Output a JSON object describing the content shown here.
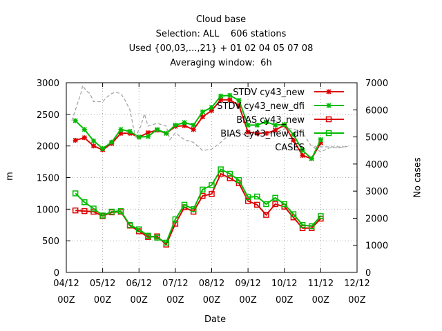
{
  "chart_data": {
    "type": "line",
    "title": "Cloud base",
    "subtitle_lines": [
      "Selection: ALL    606 stations",
      "Used {00,03,...,21} + 01 02 04 05 07 08",
      "Averaging window:  6h"
    ],
    "xlabel": "Date",
    "ylabel": "m",
    "y2label": "No cases",
    "x_ticks": [
      {
        "x": 0,
        "label": [
          "04/12",
          "00Z"
        ]
      },
      {
        "x": 1,
        "label": [
          "05/12",
          "00Z"
        ]
      },
      {
        "x": 2,
        "label": [
          "06/12",
          "00Z"
        ]
      },
      {
        "x": 3,
        "label": [
          "07/12",
          "00Z"
        ]
      },
      {
        "x": 4,
        "label": [
          "08/12",
          "00Z"
        ]
      },
      {
        "x": 5,
        "label": [
          "09/12",
          "00Z"
        ]
      },
      {
        "x": 6,
        "label": [
          "10/12",
          "00Z"
        ]
      },
      {
        "x": 7,
        "label": [
          "11/12",
          "00Z"
        ]
      },
      {
        "x": 8,
        "label": [
          "12/12",
          "00Z"
        ]
      }
    ],
    "xlim": [
      0,
      8
    ],
    "ylim": [
      0,
      3000
    ],
    "y_ticks": [
      0,
      500,
      1000,
      1500,
      2000,
      2500,
      3000
    ],
    "y2lim": [
      0,
      7000
    ],
    "y2_ticks": [
      0,
      1000,
      2000,
      3000,
      4000,
      5000,
      6000,
      7000
    ],
    "grid": true,
    "legend_position": "top-right",
    "x": [
      0.25,
      0.5,
      0.75,
      1.0,
      1.25,
      1.5,
      1.75,
      2.0,
      2.25,
      2.5,
      2.75,
      3.0,
      3.25,
      3.5,
      3.75,
      4.0,
      4.25,
      4.5,
      4.75,
      5.0,
      5.25,
      5.5,
      5.75,
      6.0,
      6.25,
      6.5,
      6.75,
      7.0,
      7.25
    ],
    "series": [
      {
        "name": "STDV cy43_new",
        "color": "#dd0000",
        "marker": "x",
        "axis": "y1",
        "values": [
          2090,
          2130,
          2000,
          1940,
          2040,
          2200,
          2200,
          2140,
          2210,
          2250,
          2200,
          2310,
          2320,
          2260,
          2460,
          2560,
          2730,
          2730,
          2640,
          2220,
          2200,
          2200,
          2250,
          2330,
          2090,
          1850,
          1800,
          2050,
          null
        ]
      },
      {
        "name": "STDV cy43_new_dfi",
        "color": "#00bb00",
        "marker": "x",
        "axis": "y1",
        "values": [
          2400,
          2260,
          2080,
          1960,
          2060,
          2260,
          2230,
          2140,
          2150,
          2260,
          2200,
          2330,
          2370,
          2330,
          2540,
          2610,
          2790,
          2800,
          2720,
          2330,
          2330,
          2380,
          2330,
          2340,
          2180,
          1930,
          1800,
          2100,
          null
        ]
      },
      {
        "name": "BIAS cy43_new",
        "color": "#dd0000",
        "marker": "square",
        "axis": "y1",
        "values": [
          980,
          970,
          960,
          890,
          950,
          960,
          740,
          650,
          560,
          570,
          440,
          770,
          1030,
          960,
          1210,
          1240,
          1560,
          1490,
          1410,
          1130,
          1070,
          910,
          1080,
          1040,
          870,
          700,
          700,
          850,
          null
        ]
      },
      {
        "name": "BIAS cy43_new_dfi",
        "color": "#00bb00",
        "marker": "square",
        "axis": "y1",
        "values": [
          1250,
          1110,
          1010,
          900,
          960,
          970,
          750,
          680,
          580,
          550,
          470,
          840,
          1070,
          1000,
          1310,
          1380,
          1630,
          1560,
          1460,
          1190,
          1200,
          1080,
          1180,
          1080,
          920,
          750,
          730,
          890,
          null
        ]
      },
      {
        "name": "CASES",
        "color": "#a0a0a0",
        "marker": "none",
        "axis": "y2",
        "dash": true,
        "points": [
          [
            0.15,
            5600
          ],
          [
            0.25,
            6000
          ],
          [
            0.4,
            6600
          ],
          [
            0.45,
            6900
          ],
          [
            0.55,
            6700
          ],
          [
            0.65,
            6600
          ],
          [
            0.75,
            6300
          ],
          [
            1.0,
            6300
          ],
          [
            1.1,
            6450
          ],
          [
            1.25,
            6600
          ],
          [
            1.35,
            6650
          ],
          [
            1.5,
            6600
          ],
          [
            1.6,
            6400
          ],
          [
            1.75,
            6000
          ],
          [
            1.9,
            5000
          ],
          [
            2.05,
            5400
          ],
          [
            2.15,
            5850
          ],
          [
            2.25,
            5400
          ],
          [
            2.5,
            5500
          ],
          [
            2.75,
            5400
          ],
          [
            2.85,
            4900
          ],
          [
            3.0,
            5150
          ],
          [
            3.25,
            4900
          ],
          [
            3.5,
            4800
          ],
          [
            3.75,
            4500
          ],
          [
            4.0,
            4550
          ],
          [
            4.25,
            4800
          ],
          [
            4.5,
            5100
          ],
          [
            4.75,
            5200
          ],
          [
            5.0,
            5000
          ],
          [
            5.25,
            5200
          ],
          [
            5.5,
            5100
          ],
          [
            5.75,
            5150
          ],
          [
            6.0,
            5300
          ],
          [
            6.25,
            5300
          ],
          [
            6.5,
            5150
          ],
          [
            6.75,
            4650
          ],
          [
            7.0,
            4450
          ],
          [
            7.25,
            4600
          ],
          [
            7.5,
            4600
          ],
          [
            7.75,
            4650
          ]
        ]
      }
    ]
  }
}
